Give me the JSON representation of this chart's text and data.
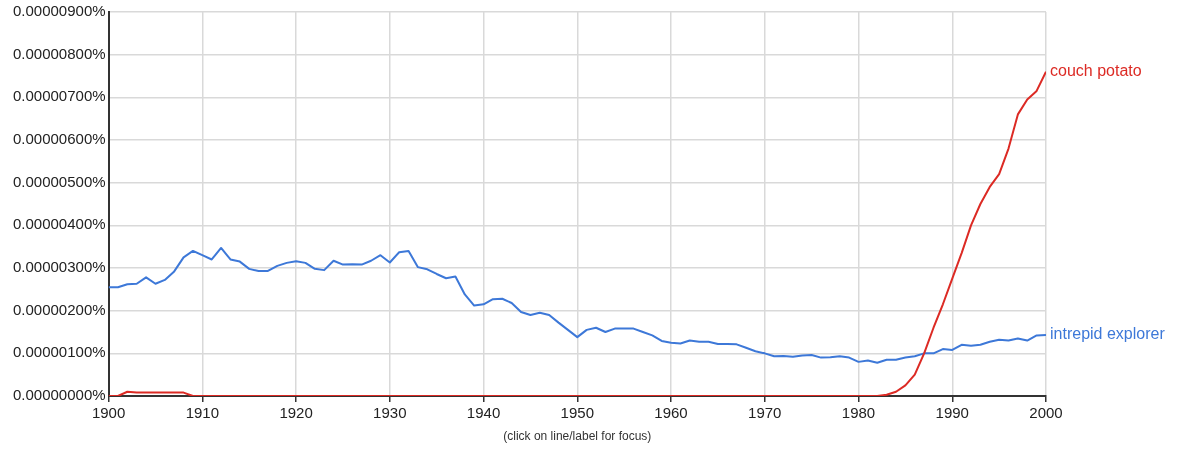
{
  "chart_data": {
    "type": "line",
    "x": [
      1900,
      1901,
      1902,
      1903,
      1904,
      1905,
      1906,
      1907,
      1908,
      1909,
      1910,
      1911,
      1912,
      1913,
      1914,
      1915,
      1916,
      1917,
      1918,
      1919,
      1920,
      1921,
      1922,
      1923,
      1924,
      1925,
      1926,
      1927,
      1928,
      1929,
      1930,
      1931,
      1932,
      1933,
      1934,
      1935,
      1936,
      1937,
      1938,
      1939,
      1940,
      1941,
      1942,
      1943,
      1944,
      1945,
      1946,
      1947,
      1948,
      1949,
      1950,
      1951,
      1952,
      1953,
      1954,
      1955,
      1956,
      1957,
      1958,
      1959,
      1960,
      1961,
      1962,
      1963,
      1964,
      1965,
      1966,
      1967,
      1968,
      1969,
      1970,
      1971,
      1972,
      1973,
      1974,
      1975,
      1976,
      1977,
      1978,
      1979,
      1980,
      1981,
      1982,
      1983,
      1984,
      1985,
      1986,
      1987,
      1988,
      1989,
      1990,
      1991,
      1992,
      1993,
      1994,
      1995,
      1996,
      1997,
      1998,
      1999,
      2000
    ],
    "series": [
      {
        "name": "couch potato",
        "color": "#dc2a24",
        "values": [
          0,
          0,
          1e-07,
          8e-08,
          8e-08,
          8e-08,
          8e-08,
          8e-08,
          8e-08,
          0,
          0,
          0,
          0,
          0,
          0,
          0,
          0,
          0,
          0,
          0,
          0,
          0,
          0,
          0,
          0,
          0,
          0,
          0,
          0,
          0,
          0,
          0,
          0,
          0,
          0,
          0,
          0,
          0,
          0,
          0,
          0,
          0,
          0,
          0,
          0,
          0,
          0,
          0,
          0,
          0,
          0,
          0,
          0,
          0,
          0,
          0,
          0,
          0,
          0,
          0,
          0,
          0,
          0,
          0,
          0,
          0,
          0,
          0,
          0,
          0,
          0,
          0,
          0,
          0,
          0,
          0,
          0,
          0,
          0,
          0,
          0,
          0,
          0,
          3e-08,
          1e-07,
          2.5e-07,
          5e-07,
          1e-06,
          1.6e-06,
          2.15e-06,
          2.75e-06,
          3.35e-06,
          4e-06,
          4.5e-06,
          4.9e-06,
          5.2e-06,
          5.8e-06,
          6.6e-06,
          6.95e-06,
          7.15e-06,
          7.6e-06
        ]
      },
      {
        "name": "intrepid explorer",
        "color": "#3d78d8",
        "values": [
          2.55e-06,
          2.55e-06,
          2.62e-06,
          2.63e-06,
          2.78e-06,
          2.63e-06,
          2.72e-06,
          2.92e-06,
          3.25e-06,
          3.4e-06,
          3.3e-06,
          3.2e-06,
          3.47e-06,
          3.2e-06,
          3.15e-06,
          2.98e-06,
          2.93e-06,
          2.93e-06,
          3.05e-06,
          3.12e-06,
          3.16e-06,
          3.12e-06,
          2.98e-06,
          2.95e-06,
          3.17e-06,
          3.08e-06,
          3.09e-06,
          3.08e-06,
          3.17e-06,
          3.3e-06,
          3.13e-06,
          3.37e-06,
          3.4e-06,
          3.02e-06,
          2.97e-06,
          2.86e-06,
          2.76e-06,
          2.8e-06,
          2.38e-06,
          2.12e-06,
          2.15e-06,
          2.27e-06,
          2.28e-06,
          2.18e-06,
          1.97e-06,
          1.9e-06,
          1.95e-06,
          1.9e-06,
          1.72e-06,
          1.55e-06,
          1.38e-06,
          1.55e-06,
          1.6e-06,
          1.5e-06,
          1.58e-06,
          1.58e-06,
          1.58e-06,
          1.5e-06,
          1.42e-06,
          1.29e-06,
          1.25e-06,
          1.23e-06,
          1.3e-06,
          1.27e-06,
          1.27e-06,
          1.22e-06,
          1.22e-06,
          1.21e-06,
          1.13e-06,
          1.05e-06,
          1e-06,
          9.3e-07,
          9.4e-07,
          9.2e-07,
          9.5e-07,
          9.6e-07,
          9e-07,
          9.1e-07,
          9.3e-07,
          9e-07,
          8e-07,
          8.3e-07,
          7.8e-07,
          8.5e-07,
          8.5e-07,
          9e-07,
          9.3e-07,
          1e-06,
          1e-06,
          1.1e-06,
          1.08e-06,
          1.2e-06,
          1.18e-06,
          1.2e-06,
          1.27e-06,
          1.32e-06,
          1.3e-06,
          1.35e-06,
          1.3e-06,
          1.42e-06,
          1.43e-06
        ]
      }
    ],
    "xlim": [
      1900,
      2000
    ],
    "xticks": [
      1900,
      1910,
      1920,
      1930,
      1940,
      1950,
      1960,
      1970,
      1980,
      1990,
      2000
    ],
    "ylim": [
      0,
      9e-06
    ],
    "yticks": [
      {
        "value": 0,
        "label": "0.00000000%"
      },
      {
        "value": 1e-06,
        "label": "0.00000100%"
      },
      {
        "value": 2e-06,
        "label": "0.00000200%"
      },
      {
        "value": 3e-06,
        "label": "0.00000300%"
      },
      {
        "value": 4e-06,
        "label": "0.00000400%"
      },
      {
        "value": 5e-06,
        "label": "0.00000500%"
      },
      {
        "value": 6e-06,
        "label": "0.00000600%"
      },
      {
        "value": 7e-06,
        "label": "0.00000700%"
      },
      {
        "value": 8e-06,
        "label": "0.00000800%"
      },
      {
        "value": 9e-06,
        "label": "0.00000900%"
      }
    ],
    "grid": true,
    "marker": "none",
    "annotations": [
      "(click on line/label for focus)"
    ]
  }
}
